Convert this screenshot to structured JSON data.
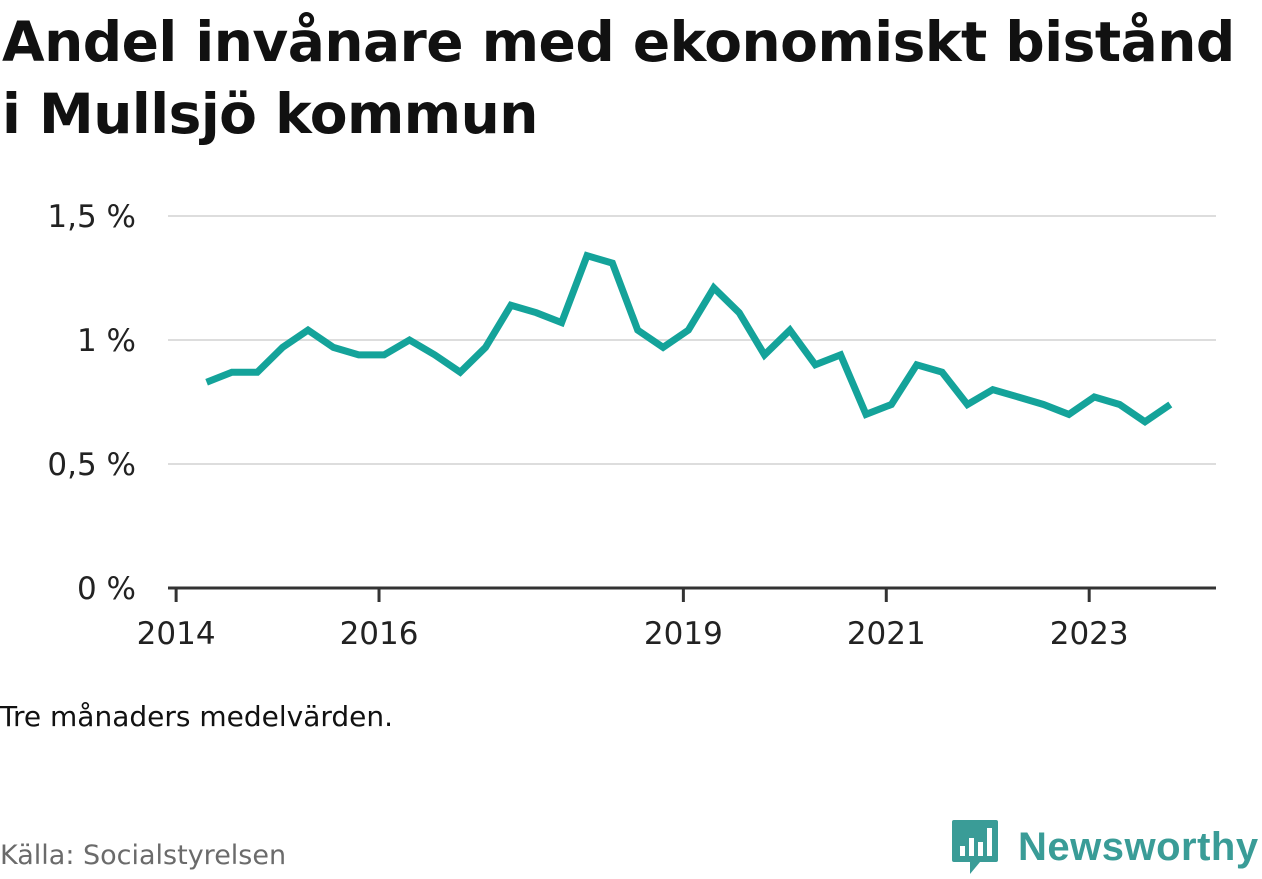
{
  "title": "Andel invånare med ekonomiskt bistånd i Mullsjö kommun",
  "note": "Tre månaders medelvärden.",
  "source": "Källa: Socialstyrelsen",
  "brand": {
    "name": "Newsworthy",
    "icon": "newsworthy-logo-icon",
    "color": "#3a9c97"
  },
  "colors": {
    "line": "#14a39a",
    "grid": "#dddddd",
    "axis": "#333333"
  },
  "chart_data": {
    "type": "line",
    "title": "Andel invånare med ekonomiskt bistånd i Mullsjö kommun",
    "xlabel": "",
    "ylabel": "",
    "ylim": [
      0,
      1.5
    ],
    "xlim": [
      2013.92,
      2024.25
    ],
    "y_ticks": [
      {
        "value": 0,
        "label": "0 %"
      },
      {
        "value": 0.5,
        "label": "0,5 %"
      },
      {
        "value": 1,
        "label": "1 %"
      },
      {
        "value": 1.5,
        "label": "1,5 %"
      }
    ],
    "x_ticks": [
      {
        "value": 2014,
        "label": "2014"
      },
      {
        "value": 2016,
        "label": "2016"
      },
      {
        "value": 2019,
        "label": "2019"
      },
      {
        "value": 2021,
        "label": "2021"
      },
      {
        "value": 2023,
        "label": "2023"
      }
    ],
    "series": [
      {
        "name": "Andel invånare med ekonomiskt bistånd",
        "x": [
          2014.3,
          2014.55,
          2014.8,
          2015.05,
          2015.3,
          2015.55,
          2015.8,
          2016.05,
          2016.3,
          2016.55,
          2016.8,
          2017.05,
          2017.3,
          2017.55,
          2017.8,
          2018.05,
          2018.3,
          2018.55,
          2018.8,
          2019.05,
          2019.3,
          2019.55,
          2019.8,
          2020.05,
          2020.3,
          2020.55,
          2020.8,
          2021.05,
          2021.3,
          2021.55,
          2021.8,
          2022.05,
          2022.3,
          2022.55,
          2022.8,
          2023.05,
          2023.3,
          2023.55,
          2023.8
        ],
        "values": [
          0.83,
          0.87,
          0.87,
          0.97,
          1.04,
          0.97,
          0.94,
          0.94,
          1.0,
          0.94,
          0.87,
          0.97,
          1.14,
          1.11,
          1.07,
          1.34,
          1.31,
          1.04,
          0.97,
          1.04,
          1.21,
          1.11,
          0.94,
          1.04,
          0.9,
          0.94,
          0.7,
          0.74,
          0.9,
          0.87,
          0.74,
          0.8,
          0.77,
          0.74,
          0.7,
          0.77,
          0.74,
          0.67,
          0.74
        ]
      }
    ]
  }
}
